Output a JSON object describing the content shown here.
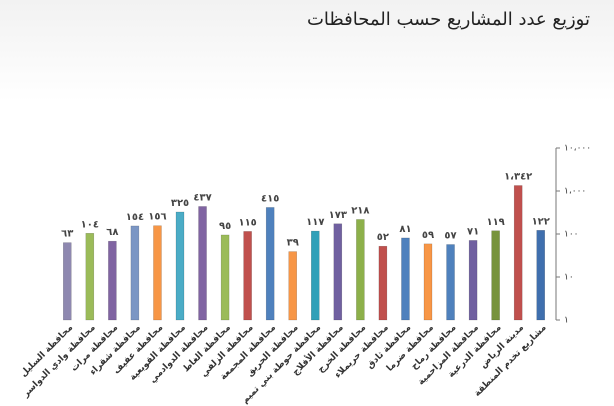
{
  "chart_data": {
    "type": "bar",
    "title": "توزيع عدد المشاريع حسب المحافظات",
    "categories": [
      "محافظة السليل",
      "محافظة وادي الدواسر",
      "محافظة مرات",
      "محافظة شقراء",
      "محافظة عفيف",
      "محافظة القويعية",
      "محافظة الدوادمي",
      "محافظة الغاط",
      "محافظة الزلفي",
      "محافظة المجمعة",
      "محافظة الحريق",
      "محافظة حوطة بني تميم",
      "محافظة الأفلاج",
      "محافظة الخرج",
      "محافظة حريملاء",
      "محافظة ثادق",
      "محافظة ضرما",
      "محافظة رماح",
      "محافظة المزاحمية",
      "محافظة الدرعية",
      "مدينة الرياض",
      "مشاريع تخدم المنطقة"
    ],
    "values": [
      63,
      104,
      68,
      154,
      156,
      325,
      437,
      95,
      115,
      415,
      39,
      117,
      173,
      218,
      52,
      81,
      59,
      57,
      71,
      119,
      1342,
      122
    ],
    "value_labels": [
      "٦٣",
      "١٠٤",
      "٦٨",
      "١٥٤",
      "١٥٦",
      "٣٢٥",
      "٤٣٧",
      "٩٥",
      "١١٥",
      "٤١٥",
      "٣٩",
      "١١٧",
      "١٧٣",
      "٢١٨",
      "٥٢",
      "٨١",
      "٥٩",
      "٥٧",
      "٧١",
      "١١٩",
      "١،٣٤٢",
      "١٢٢"
    ],
    "colors": [
      "#8e88b0",
      "#9bbb59",
      "#8064a2",
      "#7b96c4",
      "#f79646",
      "#4bacc6",
      "#8064a2",
      "#9bbb59",
      "#c0504d",
      "#4f81bd",
      "#f79646",
      "#31a0b8",
      "#7060a0",
      "#8db04a",
      "#c0504d",
      "#4f81bd",
      "#f79646",
      "#4f81bd",
      "#7060a0",
      "#77933c",
      "#c0504d",
      "#3f6fae"
    ],
    "log_scale": true,
    "ylim": [
      1,
      10000
    ],
    "yticks": [
      {
        "value": 1,
        "label": "١"
      },
      {
        "value": 10,
        "label": "١٠"
      },
      {
        "value": 100,
        "label": "١٠٠"
      },
      {
        "value": 1000,
        "label": "١،٠٠٠"
      },
      {
        "value": 10000,
        "label": "١٠،٠٠٠"
      }
    ]
  }
}
